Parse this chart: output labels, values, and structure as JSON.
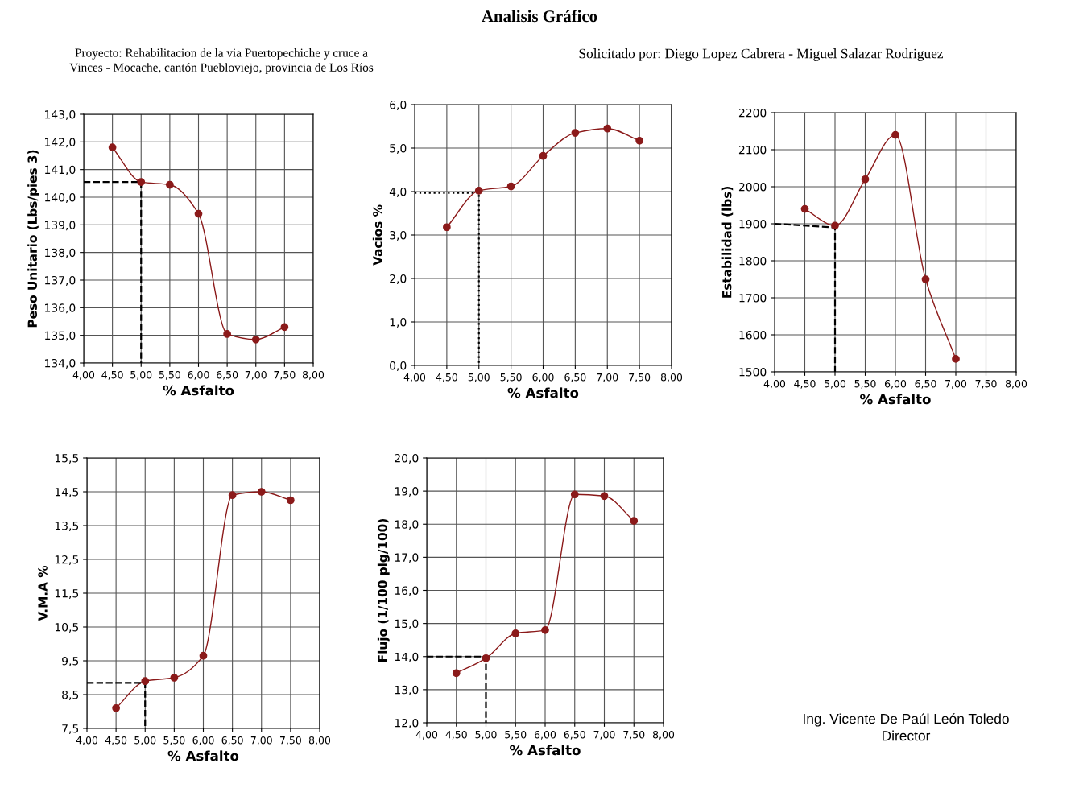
{
  "chart_data": [
    {
      "type": "line",
      "xlabel": "% Asfalto",
      "ylabel": "Peso Unitario (Lbs/pies 3)",
      "grid": true,
      "marker": "circle",
      "line_style": "solid",
      "xlim": [
        4,
        8
      ],
      "xticks": [
        {
          "value": 4,
          "label": "4,00"
        },
        {
          "value": 4.5,
          "label": "4,50"
        },
        {
          "value": 5,
          "label": "5,00"
        },
        {
          "value": 5.5,
          "label": "5,50"
        },
        {
          "value": 6,
          "label": "6,00"
        },
        {
          "value": 6.5,
          "label": "6,50"
        },
        {
          "value": 7,
          "label": "7,00"
        },
        {
          "value": 7.5,
          "label": "7,50"
        },
        {
          "value": 8,
          "label": "8,00"
        }
      ],
      "ylim": [
        134,
        143
      ],
      "yticks": [
        {
          "value": 134,
          "label": "134,0"
        },
        {
          "value": 135,
          "label": "135,0"
        },
        {
          "value": 136,
          "label": "136,0"
        },
        {
          "value": 137,
          "label": "137,0"
        },
        {
          "value": 138,
          "label": "138,0"
        },
        {
          "value": 139,
          "label": "139,0"
        },
        {
          "value": 140,
          "label": "140,0"
        },
        {
          "value": 141,
          "label": "141,0"
        },
        {
          "value": 142,
          "label": "142,0"
        },
        {
          "value": 143,
          "label": "143,0"
        }
      ],
      "series": [
        {
          "color": "#8b1a1a",
          "x": [
            4.5,
            5,
            5.5,
            6,
            6.5,
            7,
            7.5
          ],
          "values": [
            141.8,
            140.55,
            140.45,
            139.4,
            135.05,
            134.85,
            135.3
          ]
        },
        {
          "color": "#000000",
          "type": "line",
          "marker": "none",
          "line_style": "dashed",
          "x": [
            4,
            5,
            5
          ],
          "values": [
            140.55,
            140.55,
            134
          ]
        }
      ]
    },
    {
      "type": "line",
      "xlabel": "% Asfalto",
      "ylabel": "Vacios %",
      "grid": true,
      "marker": "circle",
      "line_style": "solid",
      "xlim": [
        4,
        8
      ],
      "xticks": [
        {
          "value": 4,
          "label": "4,00"
        },
        {
          "value": 4.5,
          "label": "4,50"
        },
        {
          "value": 5,
          "label": "5,00"
        },
        {
          "value": 5.5,
          "label": "5,50"
        },
        {
          "value": 6,
          "label": "6,00"
        },
        {
          "value": 6.5,
          "label": "6,50"
        },
        {
          "value": 7,
          "label": "7,00"
        },
        {
          "value": 7.5,
          "label": "7,50"
        },
        {
          "value": 8,
          "label": "8,00"
        }
      ],
      "ylim": [
        0,
        6
      ],
      "yticks": [
        {
          "value": 0,
          "label": "0,0"
        },
        {
          "value": 1,
          "label": "1,0"
        },
        {
          "value": 2,
          "label": "2,0"
        },
        {
          "value": 3,
          "label": "3,0"
        },
        {
          "value": 4,
          "label": "4,0"
        },
        {
          "value": 5,
          "label": "5,0"
        },
        {
          "value": 6,
          "label": "6,0"
        }
      ],
      "series": [
        {
          "color": "#8b1a1a",
          "x": [
            4.5,
            5,
            5.5,
            6,
            6.5,
            7,
            7.5
          ],
          "values": [
            3.18,
            4.02,
            4.12,
            4.82,
            5.35,
            5.45,
            5.17
          ]
        },
        {
          "color": "#000000",
          "type": "line",
          "marker": "none",
          "line_style": "dotted",
          "x": [
            4,
            5,
            5
          ],
          "values": [
            3.97,
            3.97,
            0
          ]
        }
      ]
    },
    {
      "type": "line",
      "xlabel": "% Asfalto",
      "ylabel": "Estabilidad (lbs)",
      "grid": true,
      "marker": "circle",
      "line_style": "solid",
      "xlim": [
        4,
        8
      ],
      "xticks": [
        {
          "value": 4,
          "label": "4,00"
        },
        {
          "value": 4.5,
          "label": "4,50"
        },
        {
          "value": 5,
          "label": "5,00"
        },
        {
          "value": 5.5,
          "label": "5,50"
        },
        {
          "value": 6,
          "label": "6,00"
        },
        {
          "value": 6.5,
          "label": "6,50"
        },
        {
          "value": 7,
          "label": "7,00"
        },
        {
          "value": 7.5,
          "label": "7,50"
        },
        {
          "value": 8,
          "label": "8,00"
        }
      ],
      "ylim": [
        1500,
        2200
      ],
      "yticks": [
        1500,
        1600,
        1700,
        1800,
        1900,
        2000,
        2100,
        2200
      ],
      "series": [
        {
          "color": "#8b1a1a",
          "x": [
            4.5,
            5,
            5.5,
            6,
            6.5,
            7
          ],
          "values": [
            1940,
            1895,
            2020,
            2140,
            1750,
            1535
          ]
        },
        {
          "color": "#000000",
          "type": "line",
          "marker": "none",
          "line_style": "dashed",
          "x": [
            4,
            5,
            5
          ],
          "values": [
            1900,
            1890,
            1500
          ]
        }
      ]
    },
    {
      "type": "line",
      "xlabel": "% Asfalto",
      "ylabel": "V.M.A %",
      "grid": true,
      "marker": "circle",
      "line_style": "solid",
      "xlim": [
        4,
        8
      ],
      "xticks": [
        {
          "value": 4,
          "label": "4,00"
        },
        {
          "value": 4.5,
          "label": "4,50"
        },
        {
          "value": 5,
          "label": "5,00"
        },
        {
          "value": 5.5,
          "label": "5,50"
        },
        {
          "value": 6,
          "label": "6,00"
        },
        {
          "value": 6.5,
          "label": "6,50"
        },
        {
          "value": 7,
          "label": "7,00"
        },
        {
          "value": 7.5,
          "label": "7,50"
        },
        {
          "value": 8,
          "label": "8,00"
        }
      ],
      "ylim": [
        7.5,
        15.5
      ],
      "yticks": [
        {
          "value": 7.5,
          "label": "7,5"
        },
        {
          "value": 8.5,
          "label": "8,5"
        },
        {
          "value": 9.5,
          "label": "9,5"
        },
        {
          "value": 10.5,
          "label": "10,5"
        },
        {
          "value": 11.5,
          "label": "11,5"
        },
        {
          "value": 12.5,
          "label": "12,5"
        },
        {
          "value": 13.5,
          "label": "13,5"
        },
        {
          "value": 14.5,
          "label": "14,5"
        },
        {
          "value": 15.5,
          "label": "15,5"
        }
      ],
      "series": [
        {
          "color": "#8b1a1a",
          "x": [
            4.5,
            5,
            5.5,
            6,
            6.5,
            7,
            7.5
          ],
          "values": [
            8.1,
            8.9,
            9.0,
            9.65,
            14.4,
            14.5,
            14.25
          ]
        },
        {
          "color": "#000000",
          "type": "line",
          "marker": "none",
          "line_style": "dashed",
          "x": [
            4,
            5,
            5
          ],
          "values": [
            8.85,
            8.85,
            7.5
          ]
        }
      ]
    },
    {
      "type": "line",
      "xlabel": "% Asfalto",
      "ylabel": "Flujo (1/100 plg/100)",
      "grid": true,
      "marker": "circle",
      "line_style": "solid",
      "xlim": [
        4,
        8
      ],
      "xticks": [
        {
          "value": 4,
          "label": "4,00"
        },
        {
          "value": 4.5,
          "label": "4,50"
        },
        {
          "value": 5,
          "label": "5,00"
        },
        {
          "value": 5.5,
          "label": "5,50"
        },
        {
          "value": 6,
          "label": "6,00"
        },
        {
          "value": 6.5,
          "label": "6,50"
        },
        {
          "value": 7,
          "label": "7,00"
        },
        {
          "value": 7.5,
          "label": "7,50"
        },
        {
          "value": 8,
          "label": "8,00"
        }
      ],
      "ylim": [
        12,
        20
      ],
      "yticks": [
        {
          "value": 12,
          "label": "12,0"
        },
        {
          "value": 13,
          "label": "13,0"
        },
        {
          "value": 14,
          "label": "14,0"
        },
        {
          "value": 15,
          "label": "15,0"
        },
        {
          "value": 16,
          "label": "16,0"
        },
        {
          "value": 17,
          "label": "17,0"
        },
        {
          "value": 18,
          "label": "18,0"
        },
        {
          "value": 19,
          "label": "19,0"
        },
        {
          "value": 20,
          "label": "20,0"
        }
      ],
      "series": [
        {
          "color": "#8b1a1a",
          "x": [
            4.5,
            5,
            5.5,
            6,
            6.5,
            7,
            7.5
          ],
          "values": [
            13.5,
            13.95,
            14.7,
            14.8,
            18.9,
            18.85,
            18.1
          ]
        },
        {
          "color": "#000000",
          "type": "line",
          "marker": "none",
          "line_style": "dashed",
          "x": [
            4,
            5,
            5
          ],
          "values": [
            14.0,
            14.0,
            12
          ]
        }
      ]
    },
    {
      "type": "other",
      "title": "Analisis Gráfico",
      "annotations": [
        "Proyecto: Rehabilitacion de la via Puertopechiche y cruce a\nVinces - Mocache, cantón Puebloviejo, provincia de Los Ríos",
        "Solicitado por: Diego Lopez Cabrera - Miguel Salazar Rodriguez",
        "Ing. Vicente De Paúl León Toledo\nDirector"
      ]
    }
  ]
}
